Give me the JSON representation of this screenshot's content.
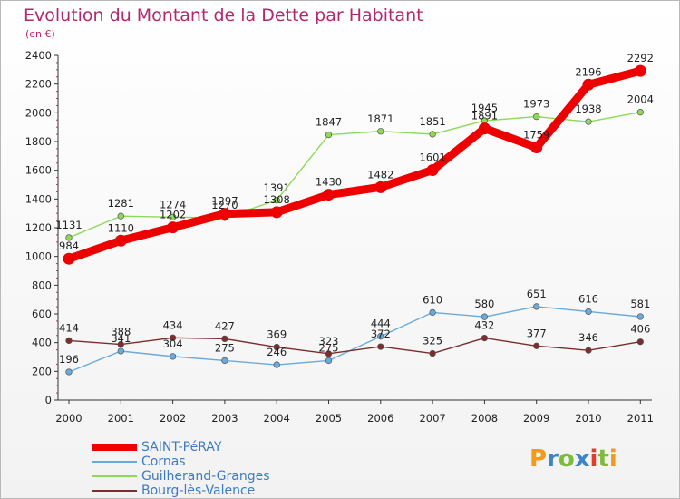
{
  "title": "Evolution du Montant de la Dette par Habitant",
  "subtitle": "(en €)",
  "logo": {
    "letters": [
      "P",
      "r",
      "o",
      "x",
      "i",
      "t",
      "i"
    ],
    "colors": [
      "#f29b1e",
      "#3d86c6",
      "#7dbb3a",
      "#3d86c6",
      "#e23c2e",
      "#7dbb3a",
      "#f29b1e"
    ]
  },
  "chart_data": {
    "type": "line",
    "title": "Evolution du Montant de la Dette par Habitant",
    "ylabel": "(en €)",
    "x": [
      "2000",
      "2001",
      "2002",
      "2003",
      "2004",
      "2005",
      "2006",
      "2007",
      "2008",
      "2009",
      "2010",
      "2011"
    ],
    "ylim": [
      0,
      2400
    ],
    "yticks": [
      0,
      200,
      400,
      600,
      800,
      1000,
      1200,
      1400,
      1600,
      1800,
      2000,
      2200,
      2400
    ],
    "grid": false,
    "legend": "bottom-left",
    "series": [
      {
        "name": "Guilherand-Granges",
        "color": "#8ed95a",
        "values": [
          1131,
          1281,
          1274,
          1270,
          1391,
          1847,
          1871,
          1851,
          1945,
          1973,
          1938,
          2004
        ]
      },
      {
        "name": "Cornas",
        "color": "#6aaadc",
        "values": [
          196,
          341,
          304,
          275,
          246,
          275,
          444,
          610,
          580,
          651,
          616,
          581
        ]
      },
      {
        "name": "Bourg-lès-Valence",
        "color": "#7b2e2e",
        "values": [
          414,
          388,
          434,
          427,
          369,
          323,
          372,
          325,
          432,
          377,
          346,
          406
        ]
      },
      {
        "name": "SAINT-PéRAY",
        "color": "#ee0000",
        "values": [
          984,
          1110,
          1202,
          1297,
          1308,
          1430,
          1482,
          1601,
          1891,
          1759,
          2196,
          2292
        ]
      }
    ],
    "legend_order": [
      "SAINT-PéRAY",
      "Cornas",
      "Guilherand-Granges",
      "Bourg-lès-Valence"
    ]
  }
}
